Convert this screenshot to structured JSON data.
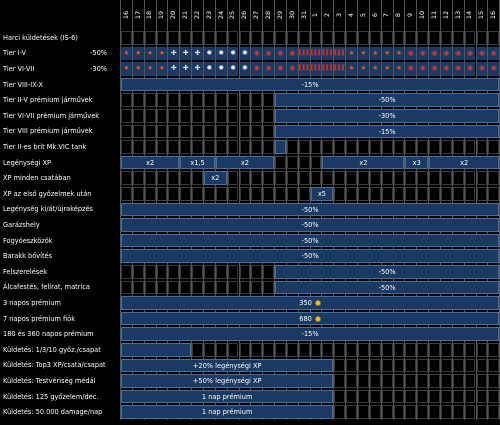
{
  "header_days": [
    "16",
    "17",
    "18",
    "19",
    "20",
    "21",
    "22",
    "23",
    "24",
    "25",
    "26",
    "27",
    "28",
    "29",
    "30",
    "31",
    "1",
    "2",
    "3",
    "4",
    "5",
    "6",
    "7",
    "8",
    "9",
    "10",
    "11",
    "12",
    "13",
    "14",
    "15",
    "16"
  ],
  "title": "Harci küldetések (IS-6)",
  "rows": [
    {
      "label": "Harci küldetések (IS-6)",
      "bars": []
    },
    {
      "label": "Tier I-V",
      "pct": "-50%",
      "icons": "row1"
    },
    {
      "label": "Tier VI-VII",
      "pct": "-30%",
      "icons": "row2"
    },
    {
      "label": "Tier VIII-IX-X",
      "bars": [
        {
          "s": 0,
          "e": 32,
          "t": "-15%"
        }
      ]
    },
    {
      "label": "Tier II-V prémium járművek",
      "bars": [
        {
          "s": 13,
          "e": 32,
          "t": "-50%"
        }
      ]
    },
    {
      "label": "Tier VI-VII prémium járművek",
      "bars": [
        {
          "s": 13,
          "e": 32,
          "t": "-30%"
        }
      ]
    },
    {
      "label": "Tier VIII prémium járművek",
      "bars": [
        {
          "s": 13,
          "e": 32,
          "t": "-15%"
        }
      ]
    },
    {
      "label": "Tier II-es brit Mk.VIC tank",
      "bars": [
        {
          "s": 13,
          "e": 14,
          "t": ""
        }
      ]
    },
    {
      "label": "Legénységi XP",
      "bars": [
        {
          "s": 0,
          "e": 5,
          "t": "x2"
        },
        {
          "s": 5,
          "e": 8,
          "t": "x1,5"
        },
        {
          "s": 8,
          "e": 13,
          "t": "x2"
        },
        {
          "s": 17,
          "e": 24,
          "t": "x2"
        },
        {
          "s": 24,
          "e": 26,
          "t": "x3"
        },
        {
          "s": 26,
          "e": 32,
          "t": "x2"
        }
      ]
    },
    {
      "label": "XP minden csatában",
      "bars": [
        {
          "s": 7,
          "e": 9,
          "t": "x2"
        }
      ]
    },
    {
      "label": "XP az első győzelmek után",
      "bars": [
        {
          "s": 16,
          "e": 18,
          "t": "x5"
        }
      ]
    },
    {
      "label": "Legénység ki/át/újraképzés",
      "bars": [
        {
          "s": 0,
          "e": 32,
          "t": "-50%"
        }
      ]
    },
    {
      "label": "Garázshely",
      "bars": [
        {
          "s": 0,
          "e": 32,
          "t": "-50%"
        }
      ]
    },
    {
      "label": "Fogyóeszközök",
      "bars": [
        {
          "s": 0,
          "e": 32,
          "t": "-50%"
        }
      ]
    },
    {
      "label": "Barakk bővítés",
      "bars": [
        {
          "s": 0,
          "e": 32,
          "t": "-50%"
        }
      ]
    },
    {
      "label": "Felszerelések",
      "bars": [
        {
          "s": 13,
          "e": 32,
          "t": "-50%"
        }
      ]
    },
    {
      "label": "Álcafestés, felirat, matrica",
      "bars": [
        {
          "s": 13,
          "e": 32,
          "t": "-50%"
        }
      ]
    },
    {
      "label": "3 napos prémium",
      "bars": [
        {
          "s": 0,
          "e": 32,
          "t": "350",
          "coin": true
        }
      ]
    },
    {
      "label": "7 napos prémium fiók",
      "bars": [
        {
          "s": 0,
          "e": 32,
          "t": "680",
          "coin": true
        }
      ]
    },
    {
      "label": "180 és 360 napos prémium",
      "bars": [
        {
          "s": 0,
          "e": 32,
          "t": "-15%"
        }
      ]
    },
    {
      "label": "Küldetés: 1/3/10 győz./csapat",
      "bars": [
        {
          "s": 0,
          "e": 6,
          "t": ""
        }
      ]
    },
    {
      "label": "Küldetés: Top3 XP/csata/csapat",
      "bars": [
        {
          "s": 0,
          "e": 18,
          "t": "+20% legénységi XP"
        }
      ]
    },
    {
      "label": "Küldetés: Testvériség medál",
      "bars": [
        {
          "s": 0,
          "e": 18,
          "t": "+50% legénységi XP"
        }
      ]
    },
    {
      "label": "Küldetés: 125 győzelem/dec.",
      "bars": [
        {
          "s": 0,
          "e": 18,
          "t": "1 nap prémium"
        }
      ]
    },
    {
      "label": "Küldetés: 50.000 damage/nap",
      "bars": [
        {
          "s": 0,
          "e": 18,
          "t": "1 nap prémium"
        }
      ]
    }
  ],
  "icon_sets": {
    "row1": [
      "★",
      "★",
      "★",
      "★",
      "✚",
      "✚",
      "✚",
      "✹",
      "✹",
      "✹",
      "✹",
      "◉",
      "◉",
      "◉",
      "◉",
      "▌▌▌",
      "▌▌▌",
      "▌▌▌",
      "▌▌▌",
      "★",
      "★",
      "★",
      "★",
      "★",
      "◉",
      "◉",
      "◉",
      "◉",
      "◉",
      "◉",
      "◉",
      "◉"
    ],
    "row2": [
      "★",
      "★",
      "★",
      "★",
      "✚",
      "✚",
      "✚",
      "✹",
      "✹",
      "✹",
      "✹",
      "◉",
      "◉",
      "◉",
      "◉",
      "▌▌▌",
      "▌▌▌",
      "▌▌▌",
      "▌▌▌",
      "★",
      "★",
      "★",
      "★",
      "★",
      "◉",
      "◉",
      "◉",
      "◉",
      "◉",
      "◉",
      "◉",
      "◉"
    ]
  },
  "icon_colors": {
    "★": "#e2552a",
    "✚": "#d9d9d9",
    "✹": "#f1f1f1",
    "◉": "#d23a3a",
    "▌▌▌": "#c23131"
  },
  "colors": {
    "bar": "#1b3a63",
    "bar_border": "#4a6d99",
    "grid": "#555555"
  }
}
